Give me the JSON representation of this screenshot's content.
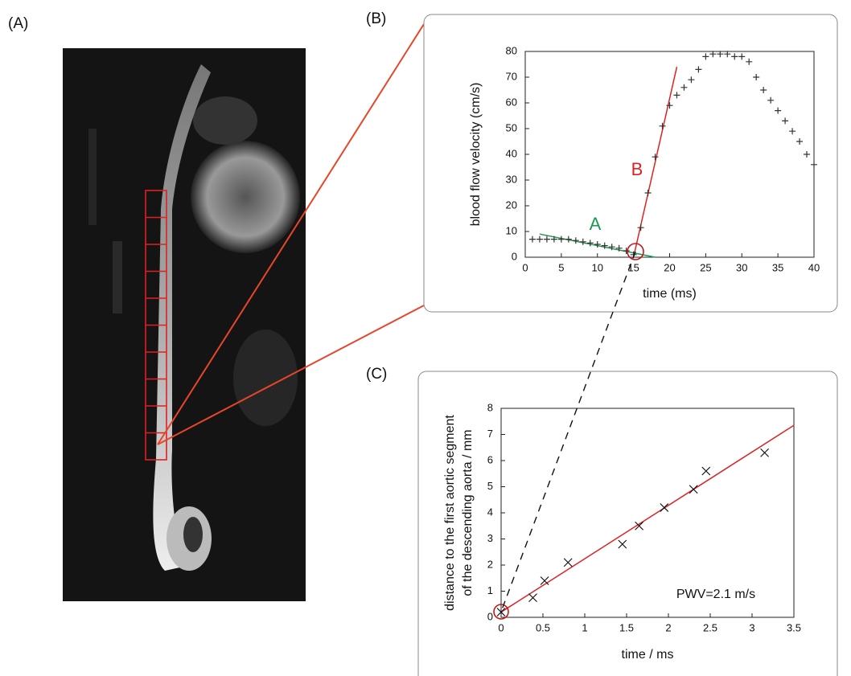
{
  "panels": [
    "(A)",
    "(B)",
    "(C)"
  ],
  "chart_data": [
    {
      "type": "scatter",
      "xlabel": "time (ms)",
      "ylabel": [
        "blood flow velocity  (cm/s)"
      ],
      "xlim": [
        0,
        40
      ],
      "ylim": [
        0,
        80
      ],
      "xticks": [
        0,
        5,
        10,
        15,
        20,
        25,
        30,
        35,
        40
      ],
      "yticks": [
        0,
        10,
        20,
        30,
        40,
        50,
        60,
        70,
        80
      ],
      "x": [
        1,
        2,
        3,
        4,
        5,
        6,
        7,
        8,
        9,
        10,
        11,
        12,
        13,
        14,
        15,
        16,
        17,
        18,
        19,
        20,
        21,
        22,
        23,
        24,
        25,
        26,
        27,
        28,
        29,
        30,
        31,
        32,
        33,
        34,
        35,
        36,
        37,
        38,
        39,
        40
      ],
      "series": [
        {
          "color": "#333333",
          "marker": "+",
          "values": [
            7,
            7,
            7,
            7,
            7,
            7,
            6.5,
            6,
            5.5,
            5,
            4.5,
            4,
            3.5,
            2.5,
            1,
            11.5,
            25,
            39,
            51,
            59,
            63,
            66,
            69,
            73,
            78,
            79,
            79,
            79,
            78,
            78,
            76,
            70,
            65,
            61,
            57,
            53,
            49,
            45,
            40,
            36
          ]
        }
      ],
      "fit_lines": [
        {
          "color": "#1a9a50",
          "x": [
            2,
            18
          ],
          "y": [
            9,
            0
          ]
        },
        {
          "color": "#dd2222",
          "x": [
            15,
            21
          ],
          "y": [
            0,
            74
          ]
        }
      ],
      "annotations": [
        {
          "text": "A",
          "color": "#1a9a50"
        },
        {
          "text": "B",
          "color": "#dd2222"
        }
      ]
    },
    {
      "type": "scatter",
      "xlabel": "time / ms",
      "ylabel": [
        "distance to the first aortic segment",
        "of the descending aorta  / mm"
      ],
      "xlim": [
        0,
        3.5
      ],
      "ylim": [
        0,
        8
      ],
      "xticks": [
        0,
        0.5,
        1,
        1.5,
        2,
        2.5,
        3,
        3.5
      ],
      "yticks": [
        0,
        1,
        2,
        3,
        4,
        5,
        6,
        7,
        8
      ],
      "x": [
        0,
        0.38,
        0.52,
        0.8,
        1.45,
        1.65,
        1.95,
        2.3,
        2.45,
        3.15
      ],
      "series": [
        {
          "color": "#111111",
          "marker": "x",
          "values": [
            0.2,
            0.75,
            1.4,
            2.1,
            2.8,
            3.5,
            4.2,
            4.9,
            5.6,
            6.3
          ]
        }
      ],
      "fit_lines": [
        {
          "color": "#dd2222",
          "x": [
            0,
            3.5
          ],
          "y": [
            0.2,
            7.35
          ]
        }
      ],
      "annotations": [
        {
          "text": "PWV=2.1 m/s",
          "color": "#111111"
        }
      ]
    }
  ]
}
